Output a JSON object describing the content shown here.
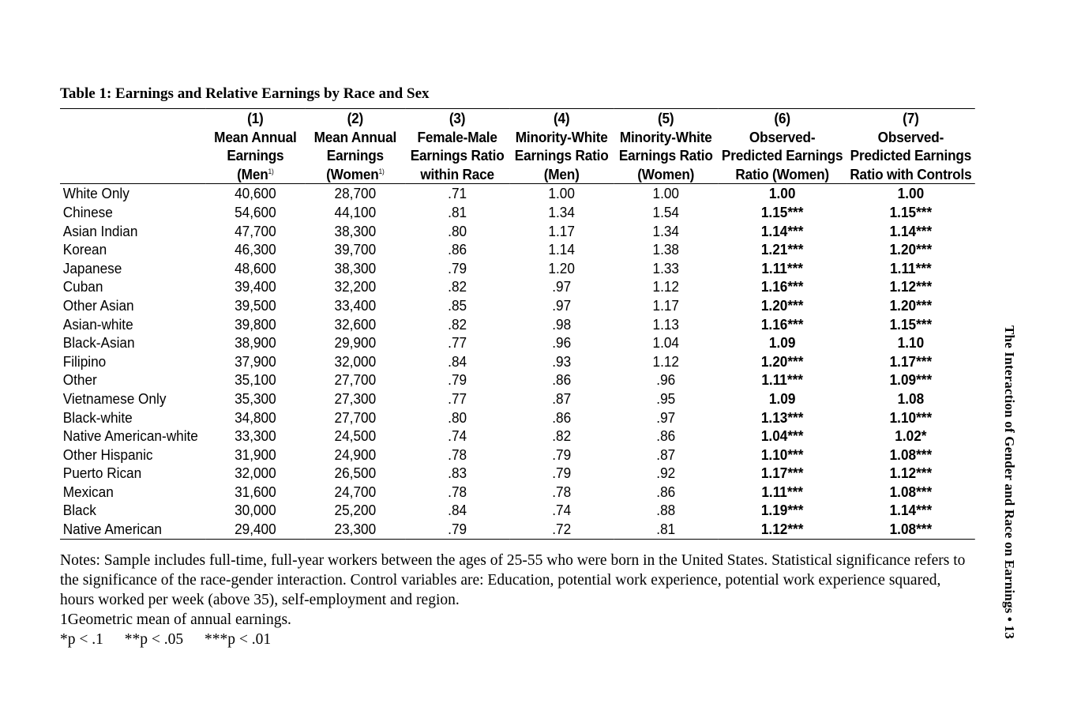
{
  "table": {
    "title": "Table 1:  Earnings and Relative Earnings by Race and Sex",
    "columns": [
      {
        "num": "(1)",
        "line1": "Mean Annual",
        "line2": "Earnings",
        "line3": "(Men",
        "sup": "1)",
        "line3_close": ""
      },
      {
        "num": "(2)",
        "line1": "Mean Annual",
        "line2": "Earnings",
        "line3": "(Women",
        "sup": "1)",
        "line3_close": ""
      },
      {
        "num": "(3)",
        "line1": "Female-Male",
        "line2": "Earnings Ratio",
        "line3": "within Race",
        "sup": "",
        "line3_close": ""
      },
      {
        "num": "(4)",
        "line1": "Minority-White",
        "line2": "Earnings Ratio",
        "line3": "(Men)",
        "sup": "",
        "line3_close": ""
      },
      {
        "num": "(5)",
        "line1": "Minority-White",
        "line2": "Earnings Ratio",
        "line3": "(Women)",
        "sup": "",
        "line3_close": ""
      },
      {
        "num": "(6)",
        "line1": "Observed-",
        "line2": "Predicted Earnings",
        "line3": "Ratio (Women)",
        "sup": "",
        "line3_close": ""
      },
      {
        "num": "(7)",
        "line1": "Observed-",
        "line2": "Predicted Earnings",
        "line3": "Ratio with Controls",
        "sup": "",
        "line3_close": ""
      }
    ],
    "rows": [
      {
        "label": "White Only",
        "v": [
          "40,600",
          "28,700",
          ".71",
          "1.00",
          "1.00",
          "1.00",
          "1.00"
        ]
      },
      {
        "label": "Chinese",
        "v": [
          "54,600",
          "44,100",
          ".81",
          "1.34",
          "1.54",
          "1.15***",
          "1.15***"
        ]
      },
      {
        "label": "Asian Indian",
        "v": [
          "47,700",
          "38,300",
          ".80",
          "1.17",
          "1.34",
          "1.14***",
          "1.14***"
        ]
      },
      {
        "label": "Korean",
        "v": [
          "46,300",
          "39,700",
          ".86",
          "1.14",
          "1.38",
          "1.21***",
          "1.20***"
        ]
      },
      {
        "label": "Japanese",
        "v": [
          "48,600",
          "38,300",
          ".79",
          "1.20",
          "1.33",
          "1.11***",
          "1.11***"
        ]
      },
      {
        "label": "Cuban",
        "v": [
          "39,400",
          "32,200",
          ".82",
          ".97",
          "1.12",
          "1.16***",
          "1.12***"
        ]
      },
      {
        "label": "Other Asian",
        "v": [
          "39,500",
          "33,400",
          ".85",
          ".97",
          "1.17",
          "1.20***",
          "1.20***"
        ]
      },
      {
        "label": "Asian-white",
        "v": [
          "39,800",
          "32,600",
          ".82",
          ".98",
          "1.13",
          "1.16***",
          "1.15***"
        ]
      },
      {
        "label": "Black-Asian",
        "v": [
          "38,900",
          "29,900",
          ".77",
          ".96",
          "1.04",
          "1.09",
          "1.10"
        ]
      },
      {
        "label": "Filipino",
        "v": [
          "37,900",
          "32,000",
          ".84",
          ".93",
          "1.12",
          "1.20***",
          "1.17***"
        ]
      },
      {
        "label": "Other",
        "v": [
          "35,100",
          "27,700",
          ".79",
          ".86",
          ".96",
          "1.11***",
          "1.09***"
        ]
      },
      {
        "label": "Vietnamese Only",
        "v": [
          "35,300",
          "27,300",
          ".77",
          ".87",
          ".95",
          "1.09",
          "1.08"
        ]
      },
      {
        "label": "Black-white",
        "v": [
          "34,800",
          "27,700",
          ".80",
          ".86",
          ".97",
          "1.13***",
          "1.10***"
        ]
      },
      {
        "label": "Native American-white",
        "v": [
          "33,300",
          "24,500",
          ".74",
          ".82",
          ".86",
          "1.04***",
          "1.02*"
        ]
      },
      {
        "label": "Other Hispanic",
        "v": [
          "31,900",
          "24,900",
          ".78",
          ".79",
          ".87",
          "1.10***",
          "1.08***"
        ]
      },
      {
        "label": "Puerto Rican",
        "v": [
          "32,000",
          "26,500",
          ".83",
          ".79",
          ".92",
          "1.17***",
          "1.12***"
        ]
      },
      {
        "label": "Mexican",
        "v": [
          "31,600",
          "24,700",
          ".78",
          ".78",
          ".86",
          "1.11***",
          "1.08***"
        ]
      },
      {
        "label": "Black",
        "v": [
          "30,000",
          "25,200",
          ".84",
          ".74",
          ".88",
          "1.19***",
          "1.14***"
        ]
      },
      {
        "label": "Native American",
        "v": [
          "29,400",
          "23,300",
          ".79",
          ".72",
          ".81",
          "1.12***",
          "1.08***"
        ]
      }
    ]
  },
  "notes": {
    "main": "Notes: Sample includes full-time, full-year workers between the ages of 25-55 who were born in the United States. Statistical significance refers to the significance of the race-gender interaction. Control variables are: Education, potential work experience, potential work experience squared, hours worked per week (above 35), self-employment and region.",
    "footnote": "1Geometric mean of annual earnings.",
    "significance": [
      "*p < .1",
      "**p < .05",
      "***p < .01"
    ]
  },
  "running_head": "The Interaction of Gender and Race on Earnings • 13"
}
